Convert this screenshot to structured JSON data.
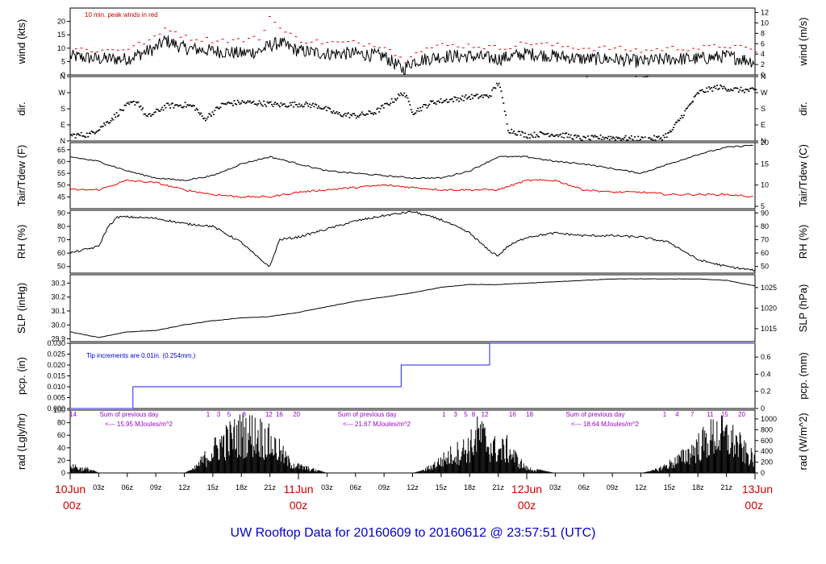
{
  "title": "UW Rooftop Data for 20160609  to  20160612 @ 23:57:51  (UTC)",
  "colors": {
    "black": "#000000",
    "red": "#ee0000",
    "blue": "#2222ee",
    "purple": "#9900cc",
    "title": "#0000cc",
    "daylabel": "#cc0000"
  },
  "xaxis": {
    "hour_ticks": [
      "03z",
      "06z",
      "09z",
      "12z",
      "15z",
      "18z",
      "21z",
      "03z",
      "06z",
      "09z",
      "12z",
      "15z",
      "18z",
      "21z",
      "03z",
      "06z",
      "09z",
      "12z",
      "15z",
      "18z",
      "21z"
    ],
    "hour_tick_positions": [
      3,
      6,
      9,
      12,
      15,
      18,
      21,
      27,
      30,
      33,
      36,
      39,
      42,
      45,
      51,
      54,
      57,
      60,
      63,
      66,
      69
    ],
    "days": [
      {
        "date": "10Jun",
        "time": "00z",
        "hour": 0
      },
      {
        "date": "11Jun",
        "time": "00z",
        "hour": 24
      },
      {
        "date": "12Jun",
        "time": "00z",
        "hour": 48
      },
      {
        "date": "13Jun",
        "time": "00z",
        "hour": 72
      }
    ],
    "range_hours": [
      0,
      72
    ]
  },
  "panels": {
    "wind": {
      "ylabel_left": "wind (kts)",
      "ylabel_right": "wind (m/s)",
      "left_ticks": [
        "0",
        "5",
        "10",
        "15",
        "20"
      ],
      "right_ticks": [
        "0",
        "2",
        "4",
        "6",
        "8",
        "10",
        "12"
      ],
      "annotation": "10 min. peak winds in red"
    },
    "dir": {
      "ylabel_left": "dir.",
      "ylabel_right": "dir.",
      "left_ticks": [
        "N",
        "E",
        "S",
        "W",
        "N"
      ],
      "right_ticks": [
        "N",
        "E",
        "S",
        "W",
        "N"
      ]
    },
    "temp": {
      "ylabel_left": "Tair/Tdew (F)",
      "ylabel_right": "Tair/Tdew (C)",
      "left_ticks": [
        "45",
        "50",
        "55",
        "60",
        "65"
      ],
      "right_ticks": [
        "5",
        "10",
        "15",
        "20"
      ]
    },
    "rh": {
      "ylabel_left": "RH (%)",
      "ylabel_right": "RH (%)",
      "left_ticks": [
        "50",
        "60",
        "70",
        "80",
        "90"
      ],
      "right_ticks": [
        "50",
        "60",
        "70",
        "80",
        "90"
      ]
    },
    "slp": {
      "ylabel_left": "SLP (inHg)",
      "ylabel_right": "SLP (hPa)",
      "left_ticks": [
        "29.9",
        "30.0",
        "30.1",
        "30.2",
        "30.3"
      ],
      "right_ticks": [
        "1015",
        "1020",
        "1025"
      ]
    },
    "pcp": {
      "ylabel_left": "pcp. (in)",
      "ylabel_right": "pcp. (mm)",
      "left_ticks": [
        "0.000",
        "0.005",
        "0.010",
        "0.015",
        "0.020",
        "0.025",
        "0.030"
      ],
      "right_ticks": [
        "0",
        "0.2",
        "0.4",
        "0.6"
      ],
      "annotation": "Tip increments are 0.01in. (0.254mm.)"
    },
    "rad": {
      "ylabel_left": "rad (Lgly/hr)",
      "ylabel_right": "rad (W/m^2)",
      "left_ticks": [
        "0",
        "20",
        "40",
        "60",
        "80",
        "100"
      ],
      "right_ticks": [
        "0",
        "200",
        "400",
        "600",
        "800",
        "1000",
        "1200"
      ],
      "sums": [
        {
          "label": "Sum of previous day",
          "value": "<--- 15.95 MJoules/m^2"
        },
        {
          "label": "Sum of previous day",
          "value": "<--- 21.67 MJoules/m^2"
        },
        {
          "label": "Sum of previous day",
          "value": "<--- 18.64 MJoules/m^2"
        }
      ],
      "hour_labels": [
        {
          "text": "14",
          "hour": 0.3
        },
        {
          "text": "1",
          "hour": 14.5
        },
        {
          "text": "3",
          "hour": 15.6
        },
        {
          "text": "5",
          "hour": 16.7
        },
        {
          "text": "8",
          "hour": 18.3
        },
        {
          "text": "12",
          "hour": 20.9
        },
        {
          "text": "16",
          "hour": 22.0
        },
        {
          "text": "20",
          "hour": 23.8
        },
        {
          "text": "1",
          "hour": 39.3
        },
        {
          "text": "3",
          "hour": 40.5
        },
        {
          "text": "5",
          "hour": 41.6
        },
        {
          "text": "8",
          "hour": 42.4
        },
        {
          "text": "12",
          "hour": 43.6
        },
        {
          "text": "16",
          "hour": 46.5
        },
        {
          "text": "18",
          "hour": 48.3
        },
        {
          "text": "1",
          "hour": 62.5
        },
        {
          "text": "4",
          "hour": 63.8
        },
        {
          "text": "7",
          "hour": 65.4
        },
        {
          "text": "11",
          "hour": 67.3
        },
        {
          "text": "15",
          "hour": 68.8
        },
        {
          "text": "20",
          "hour": 70.6
        }
      ]
    }
  },
  "chart_data": {
    "type": "line",
    "title": "UW Rooftop Data for 20160609  to  20160612 @ 23:57:51  (UTC)",
    "x_unit": "hours since 10Jun 00z",
    "wind_kts": {
      "x": [
        0,
        3,
        6,
        9,
        10,
        12,
        15,
        18,
        20,
        21,
        22,
        24,
        27,
        30,
        33,
        35,
        36,
        39,
        42,
        45,
        48,
        51,
        54,
        57,
        60,
        63,
        66,
        69,
        72
      ],
      "values": [
        7,
        6,
        6,
        10,
        13,
        10,
        9,
        8,
        9,
        11,
        12,
        9,
        8,
        8,
        7,
        2,
        5,
        7,
        7,
        6,
        8,
        7,
        6,
        6,
        5,
        6,
        6,
        7,
        5
      ]
    },
    "peak_kts": {
      "x": [
        0,
        3,
        6,
        9,
        10,
        12,
        15,
        18,
        20,
        21,
        22,
        24,
        27,
        30,
        33,
        35,
        36,
        39,
        42,
        45,
        48,
        51,
        54,
        57,
        60,
        63,
        66,
        69,
        72
      ],
      "values": [
        10,
        9,
        10,
        14,
        18,
        14,
        13,
        13,
        14,
        23,
        17,
        13,
        12,
        12,
        11,
        5,
        9,
        11,
        11,
        10,
        12,
        11,
        10,
        10,
        9,
        10,
        10,
        11,
        9
      ]
    },
    "dir_deg": {
      "x": [
        0,
        2,
        4,
        6,
        7,
        8,
        10,
        12,
        13,
        14,
        16,
        18,
        20,
        22,
        24,
        26,
        28,
        30,
        32,
        34,
        35,
        36,
        38,
        40,
        42,
        44,
        45,
        46,
        48,
        50,
        52,
        54,
        56,
        58,
        60,
        62,
        63,
        64,
        66,
        68,
        70,
        72
      ],
      "values": [
        30,
        35,
        110,
        200,
        220,
        130,
        195,
        200,
        190,
        120,
        205,
        215,
        210,
        200,
        205,
        195,
        150,
        140,
        160,
        230,
        270,
        160,
        215,
        230,
        245,
        250,
        330,
        60,
        30,
        40,
        30,
        10,
        20,
        15,
        10,
        15,
        45,
        120,
        270,
        300,
        285,
        280
      ]
    },
    "tair_F": {
      "x": [
        0,
        3,
        6,
        9,
        12,
        15,
        18,
        21,
        24,
        27,
        30,
        33,
        36,
        39,
        42,
        45,
        48,
        51,
        54,
        57,
        60,
        63,
        66,
        69,
        72
      ],
      "values": [
        62,
        60,
        56,
        53,
        52,
        54,
        59,
        62,
        59,
        56,
        55,
        54,
        53,
        53,
        56,
        62,
        62,
        60,
        59,
        57,
        55,
        59,
        63,
        66,
        67
      ]
    },
    "tdew_F": {
      "x": [
        0,
        3,
        6,
        9,
        12,
        15,
        18,
        21,
        24,
        27,
        30,
        33,
        36,
        39,
        42,
        45,
        48,
        51,
        54,
        57,
        60,
        63,
        66,
        69,
        72
      ],
      "values": [
        48,
        48,
        52,
        51,
        48,
        46,
        45,
        45,
        47,
        48,
        49,
        50,
        49,
        48,
        48,
        48,
        52,
        52,
        48,
        47,
        47,
        46,
        46,
        46,
        45
      ]
    },
    "rh_pct": {
      "x": [
        0,
        3,
        4,
        5,
        6,
        9,
        12,
        15,
        18,
        20,
        21,
        22,
        24,
        27,
        30,
        33,
        36,
        39,
        42,
        44,
        45,
        46,
        48,
        51,
        54,
        57,
        60,
        63,
        66,
        69,
        72
      ],
      "values": [
        60,
        65,
        80,
        87,
        87,
        86,
        82,
        80,
        68,
        55,
        50,
        70,
        72,
        78,
        84,
        88,
        91,
        85,
        75,
        62,
        58,
        65,
        72,
        75,
        73,
        73,
        72,
        68,
        55,
        50,
        47
      ]
    },
    "slp_inHg": {
      "x": [
        0,
        3,
        6,
        9,
        12,
        15,
        18,
        21,
        24,
        27,
        30,
        33,
        36,
        39,
        42,
        45,
        48,
        51,
        54,
        57,
        60,
        63,
        66,
        69,
        72
      ],
      "values": [
        29.95,
        29.91,
        29.95,
        29.96,
        30.0,
        30.03,
        30.05,
        30.06,
        30.09,
        30.13,
        30.17,
        30.2,
        30.23,
        30.27,
        30.29,
        30.29,
        30.3,
        30.31,
        30.32,
        30.33,
        30.33,
        30.33,
        30.33,
        30.32,
        30.28
      ]
    },
    "pcp_in": {
      "x": [
        0,
        6.6,
        34.8,
        44.1,
        72
      ],
      "values": [
        0.0,
        0.01,
        0.02,
        0.03,
        0.03
      ]
    },
    "rad_lgly": {
      "x": [
        0,
        1,
        2,
        3,
        6,
        12,
        13,
        14,
        16,
        18,
        19,
        20,
        21,
        22,
        23,
        24,
        26,
        27,
        36,
        37,
        38,
        40,
        42,
        43,
        44,
        45,
        46,
        47,
        48,
        50,
        51,
        60,
        61,
        62,
        64,
        66,
        68,
        69,
        70,
        71,
        72
      ],
      "values": [
        20,
        10,
        8,
        0,
        0,
        0,
        8,
        30,
        70,
        90,
        90,
        85,
        70,
        50,
        25,
        15,
        5,
        0,
        0,
        4,
        15,
        40,
        60,
        90,
        65,
        50,
        55,
        30,
        10,
        3,
        0,
        0,
        3,
        10,
        30,
        60,
        90,
        80,
        70,
        45,
        30
      ]
    },
    "ylim": {
      "wind_kts": [
        0,
        25
      ],
      "dir_deg": [
        0,
        360
      ],
      "temp_F": [
        40,
        68
      ],
      "rh_pct": [
        45,
        92
      ],
      "slp_inHg": [
        29.88,
        30.36
      ],
      "pcp_in": [
        0,
        0.03
      ],
      "rad_lgly": [
        0,
        100
      ]
    },
    "grid": false,
    "legend": "none"
  }
}
